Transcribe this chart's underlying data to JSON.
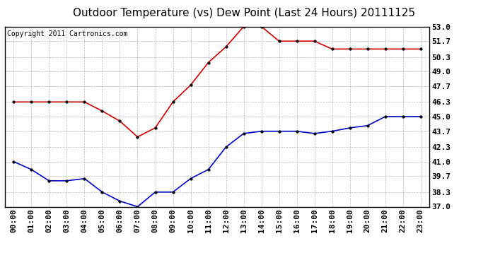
{
  "title": "Outdoor Temperature (vs) Dew Point (Last 24 Hours) 20111125",
  "copyright_text": "Copyright 2011 Cartronics.com",
  "x_labels": [
    "00:00",
    "01:00",
    "02:00",
    "03:00",
    "04:00",
    "05:00",
    "06:00",
    "07:00",
    "08:00",
    "09:00",
    "10:00",
    "11:00",
    "12:00",
    "13:00",
    "14:00",
    "15:00",
    "16:00",
    "17:00",
    "18:00",
    "19:00",
    "20:00",
    "21:00",
    "22:00",
    "23:00"
  ],
  "temp_values": [
    46.3,
    46.3,
    46.3,
    46.3,
    46.3,
    45.5,
    44.6,
    43.2,
    44.0,
    46.3,
    47.8,
    49.8,
    51.2,
    53.0,
    53.0,
    51.7,
    51.7,
    51.7,
    51.0,
    51.0,
    51.0,
    51.0,
    51.0,
    51.0
  ],
  "dew_values": [
    41.0,
    40.3,
    39.3,
    39.3,
    39.5,
    38.3,
    37.5,
    37.0,
    38.3,
    38.3,
    39.5,
    40.3,
    42.3,
    43.5,
    43.7,
    43.7,
    43.7,
    43.5,
    43.7,
    44.0,
    44.2,
    45.0,
    45.0,
    45.0
  ],
  "temp_color": "#cc0000",
  "dew_color": "#0000cc",
  "bg_color": "#ffffff",
  "plot_bg_color": "#ffffff",
  "grid_color": "#aaaaaa",
  "border_color": "#000000",
  "ylim": [
    37.0,
    53.0
  ],
  "yticks": [
    37.0,
    38.3,
    39.7,
    41.0,
    42.3,
    43.7,
    45.0,
    46.3,
    47.7,
    49.0,
    50.3,
    51.7,
    53.0
  ],
  "title_fontsize": 11,
  "copyright_fontsize": 7,
  "tick_fontsize": 8
}
